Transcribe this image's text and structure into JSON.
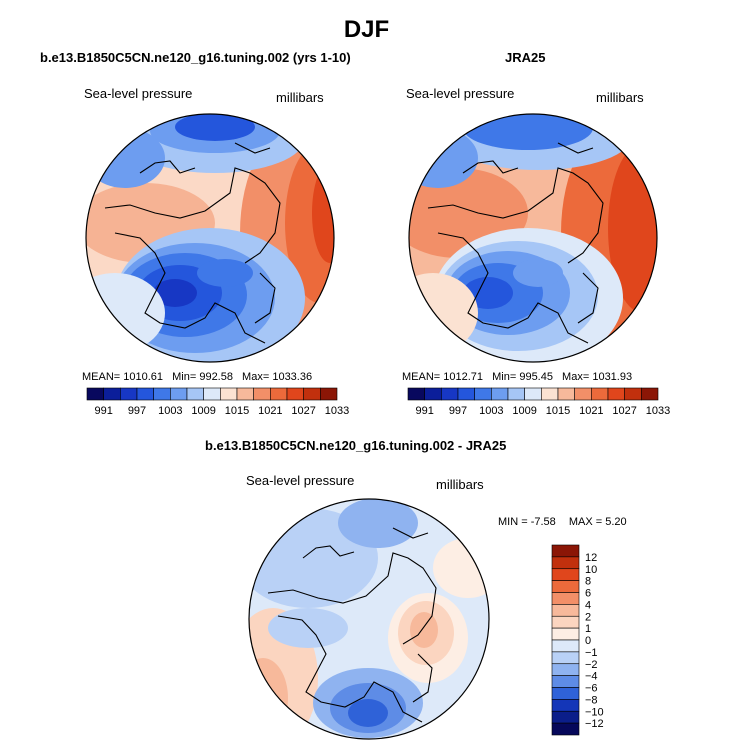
{
  "title": "DJF",
  "panels": {
    "model": {
      "title": "b.e13.B1850C5CN.ne120_g16.tuning.002 (yrs 1-10)",
      "variable": "Sea-level pressure",
      "units": "millibars",
      "stats": {
        "mean_label": "MEAN=",
        "mean": "1010.61",
        "min_label": "Min=",
        "min": "992.58",
        "max_label": "Max=",
        "max": "1033.36"
      }
    },
    "obs": {
      "title": "JRA25",
      "variable": "Sea-level pressure",
      "units": "millibars",
      "stats": {
        "mean_label": "MEAN=",
        "mean": "1012.71",
        "min_label": "Min=",
        "min": "995.45",
        "max_label": "Max=",
        "max": "1031.93"
      }
    },
    "diff": {
      "title": "b.e13.B1850C5CN.ne120_g16.tuning.002 - JRA25",
      "variable": "Sea-level pressure",
      "units": "millibars",
      "stats": {
        "min_label": "MIN =",
        "min": "-7.58",
        "max_label": "MAX =",
        "max": "5.20"
      }
    }
  },
  "chart_data": [
    {
      "type": "heatmap",
      "projection": "north-polar-stereographic",
      "title": "b.e13.B1850C5CN.ne120_g16.tuning.002 (yrs 1-10)",
      "variable": "Sea-level pressure",
      "units": "millibars",
      "mean": 1010.61,
      "min": 992.58,
      "max": 1033.36,
      "colorbar_levels": [
        991,
        994,
        997,
        1000,
        1003,
        1006,
        1009,
        1012,
        1015,
        1018,
        1021,
        1024,
        1027,
        1030,
        1033
      ],
      "colorbar_tick_labels": [
        "991",
        "997",
        "1003",
        "1009",
        "1015",
        "1021",
        "1027",
        "1033"
      ],
      "colorbar_colors": [
        "#08085e",
        "#0b1e9a",
        "#1737c4",
        "#2456dc",
        "#3f78e8",
        "#6d9df0",
        "#a6c6f6",
        "#dde9f9",
        "#fbe2d2",
        "#f7b99b",
        "#f28f68",
        "#ec6a3b",
        "#e0461c",
        "#c1300d",
        "#8b1606"
      ],
      "colorbar_orientation": "horizontal"
    },
    {
      "type": "heatmap",
      "projection": "north-polar-stereographic",
      "title": "JRA25",
      "variable": "Sea-level pressure",
      "units": "millibars",
      "mean": 1012.71,
      "min": 995.45,
      "max": 1031.93,
      "colorbar_levels": [
        991,
        994,
        997,
        1000,
        1003,
        1006,
        1009,
        1012,
        1015,
        1018,
        1021,
        1024,
        1027,
        1030,
        1033
      ],
      "colorbar_tick_labels": [
        "991",
        "997",
        "1003",
        "1009",
        "1015",
        "1021",
        "1027",
        "1033"
      ],
      "colorbar_colors": [
        "#08085e",
        "#0b1e9a",
        "#1737c4",
        "#2456dc",
        "#3f78e8",
        "#6d9df0",
        "#a6c6f6",
        "#dde9f9",
        "#fbe2d2",
        "#f7b99b",
        "#f28f68",
        "#ec6a3b",
        "#e0461c",
        "#c1300d",
        "#8b1606"
      ],
      "colorbar_orientation": "horizontal"
    },
    {
      "type": "heatmap",
      "projection": "north-polar-stereographic",
      "title": "b.e13.B1850C5CN.ne120_g16.tuning.002 - JRA25",
      "variable": "Sea-level pressure",
      "units": "millibars",
      "min": -7.58,
      "max": 5.2,
      "colorbar_levels": [
        12,
        10,
        8,
        6,
        4,
        2,
        1,
        0,
        -1,
        -2,
        -4,
        -6,
        -8,
        -10,
        -12
      ],
      "colorbar_tick_labels": [
        "12",
        "10",
        "8",
        "6",
        "4",
        "2",
        "1",
        "0",
        "−1",
        "−2",
        "−4",
        "−6",
        "−8",
        "−10",
        "−12"
      ],
      "colorbar_colors": [
        "#8b1606",
        "#c1300d",
        "#e0461c",
        "#ec6a3b",
        "#f28f68",
        "#f7b99b",
        "#fbd5c0",
        "#fdeee4",
        "#dde9f9",
        "#b9d1f6",
        "#8fb3f0",
        "#5e8ce6",
        "#2f62d8",
        "#1436b8",
        "#0b1e8a",
        "#06085a"
      ],
      "colorbar_orientation": "vertical"
    }
  ]
}
